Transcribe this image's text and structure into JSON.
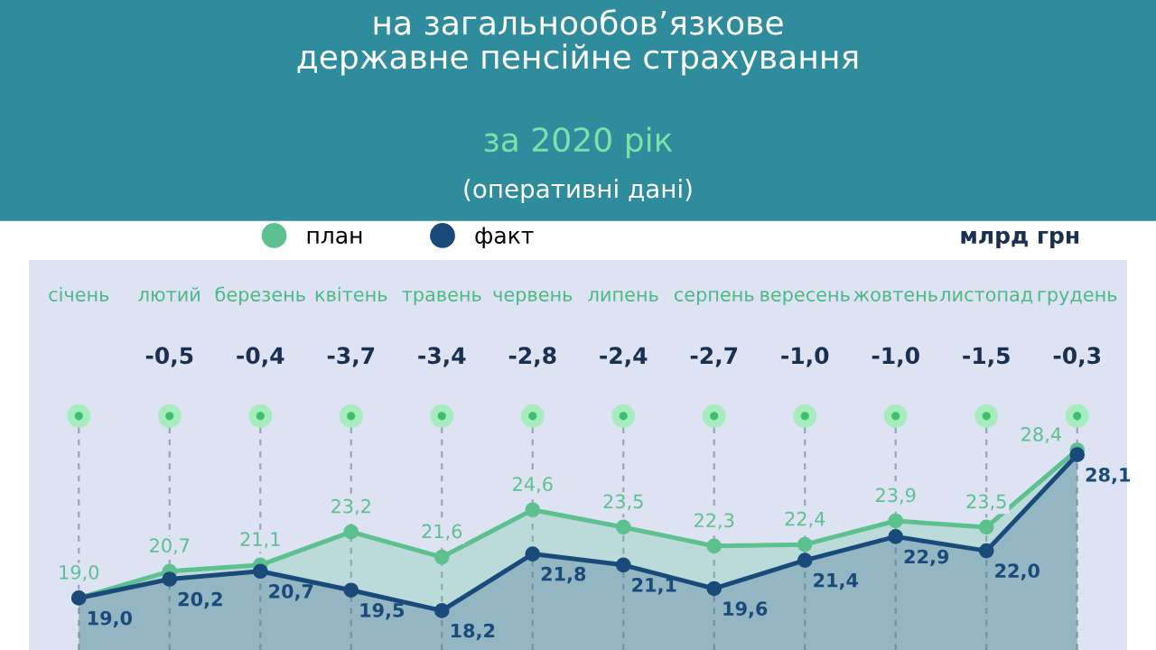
{
  "chart_data": {
    "type": "area",
    "title": "на загальнообов’язкове\nдержавне пенсійне страхування",
    "subtitle": "за 2020 рік",
    "ylabel": "млрд грн",
    "categories": [
      "січень",
      "лютий",
      "березень",
      "квітень",
      "травень",
      "червень",
      "липень",
      "серпень",
      "вересень",
      "жовтень",
      "листопад",
      "грудень"
    ],
    "series": [
      {
        "name": "план",
        "color": "#5cc08f",
        "values": [
          19.0,
          20.7,
          21.1,
          23.2,
          21.6,
          24.6,
          23.5,
          22.3,
          22.4,
          23.9,
          23.5,
          28.4
        ],
        "value_labels": [
          "19,0",
          "20,7",
          "21,1",
          "23,2",
          "21,6",
          "24,6",
          "23,5",
          "22,3",
          "22,4",
          "23,9",
          "23,5",
          "28,4"
        ]
      },
      {
        "name": "факт",
        "color": "#1a4a7a",
        "values": [
          19.0,
          20.2,
          20.7,
          19.5,
          18.2,
          21.8,
          21.1,
          19.6,
          21.4,
          22.9,
          22.0,
          28.1
        ],
        "value_labels": [
          "19,0",
          "20,2",
          "20,7",
          "19,5",
          "18,2",
          "21,8",
          "21,1",
          "19,6",
          "21,4",
          "22,9",
          "22,0",
          "28,1"
        ]
      }
    ],
    "annotations": [
      "(оперативні дані)",
      "-0,5",
      "-0,4",
      "-3,7",
      "-3,4",
      "-2,8",
      "-2,4",
      "-2,7",
      "-1,0",
      "-1,0",
      "-1,5",
      "-0,3"
    ],
    "marker": "circle",
    "grid": "x",
    "legend": "top left"
  }
}
